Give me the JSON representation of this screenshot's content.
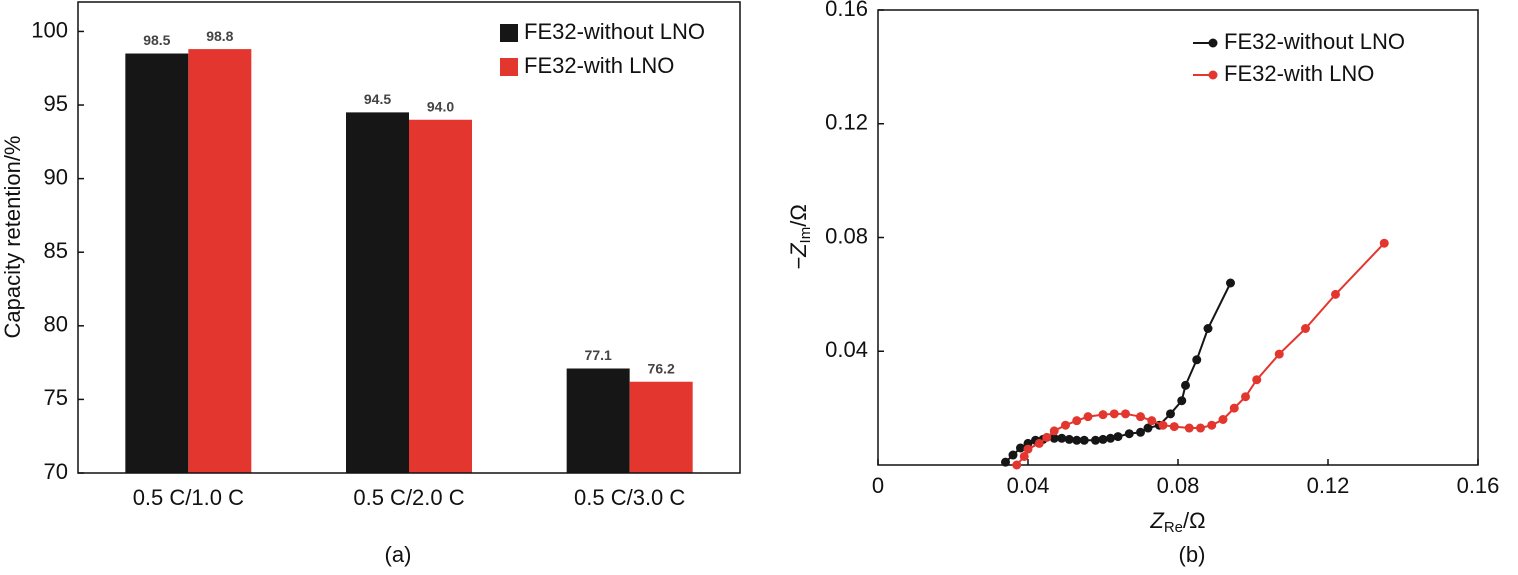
{
  "chart_data": [
    {
      "type": "bar",
      "ylabel": "Capacity retention/%",
      "caption": "(a)",
      "categories": [
        "0.5 C/1.0 C",
        "0.5 C/2.0 C",
        "0.5 C/3.0 C"
      ],
      "series": [
        {
          "name": "FE32-without LNO",
          "color": "#161616",
          "values": [
            98.5,
            94.5,
            77.1
          ],
          "value_labels": [
            "98.5",
            "94.5",
            "77.1"
          ]
        },
        {
          "name": "FE32-with LNO",
          "color": "#e2362f",
          "values": [
            98.8,
            94.0,
            76.2
          ],
          "value_labels": [
            "98.8",
            "94.0",
            "76.2"
          ]
        }
      ],
      "ylim": [
        70,
        102
      ],
      "yticks": [
        70,
        75,
        80,
        85,
        90,
        95,
        100
      ],
      "legend": "upper right"
    },
    {
      "type": "line",
      "xlabel": {
        "main": "Z",
        "sub": "Re",
        "unit": "/Ω"
      },
      "ylabel": {
        "main": "−Z",
        "sub": "Im",
        "unit": "/Ω"
      },
      "caption": "(b)",
      "series": [
        {
          "name": "FE32-without LNO",
          "color": "#161616",
          "x": [
            0.034,
            0.036,
            0.038,
            0.04,
            0.042,
            0.044,
            0.047,
            0.049,
            0.051,
            0.053,
            0.055,
            0.058,
            0.06,
            0.062,
            0.064,
            0.067,
            0.07,
            0.072,
            0.075,
            0.078,
            0.081,
            0.082,
            0.085,
            0.088,
            0.094
          ],
          "values": [
            0.001,
            0.0035,
            0.006,
            0.0076,
            0.0087,
            0.009,
            0.0094,
            0.0094,
            0.009,
            0.0087,
            0.0087,
            0.0087,
            0.009,
            0.0094,
            0.01,
            0.011,
            0.0115,
            0.013,
            0.014,
            0.018,
            0.0226,
            0.028,
            0.037,
            0.048,
            0.064
          ]
        },
        {
          "name": "FE32-with LNO",
          "color": "#e2362f",
          "x": [
            0.037,
            0.039,
            0.04,
            0.043,
            0.045,
            0.047,
            0.05,
            0.053,
            0.056,
            0.06,
            0.063,
            0.066,
            0.07,
            0.073,
            0.076,
            0.079,
            0.083,
            0.086,
            0.089,
            0.092,
            0.095,
            0.098,
            0.101,
            0.107,
            0.114,
            0.122,
            0.135
          ],
          "values": [
            0,
            0.003,
            0.0056,
            0.0076,
            0.0097,
            0.012,
            0.014,
            0.0156,
            0.017,
            0.0177,
            0.018,
            0.018,
            0.017,
            0.0156,
            0.014,
            0.0135,
            0.013,
            0.013,
            0.014,
            0.016,
            0.02,
            0.024,
            0.03,
            0.039,
            0.048,
            0.06,
            0.078
          ]
        }
      ],
      "xlim": [
        0,
        0.16
      ],
      "xticks": [
        0,
        0.04,
        0.08,
        0.12,
        0.16
      ],
      "ylim": [
        0,
        0.16
      ],
      "yticks": [
        0.04,
        0.08,
        0.12,
        0.16
      ],
      "legend": "upper center"
    }
  ]
}
